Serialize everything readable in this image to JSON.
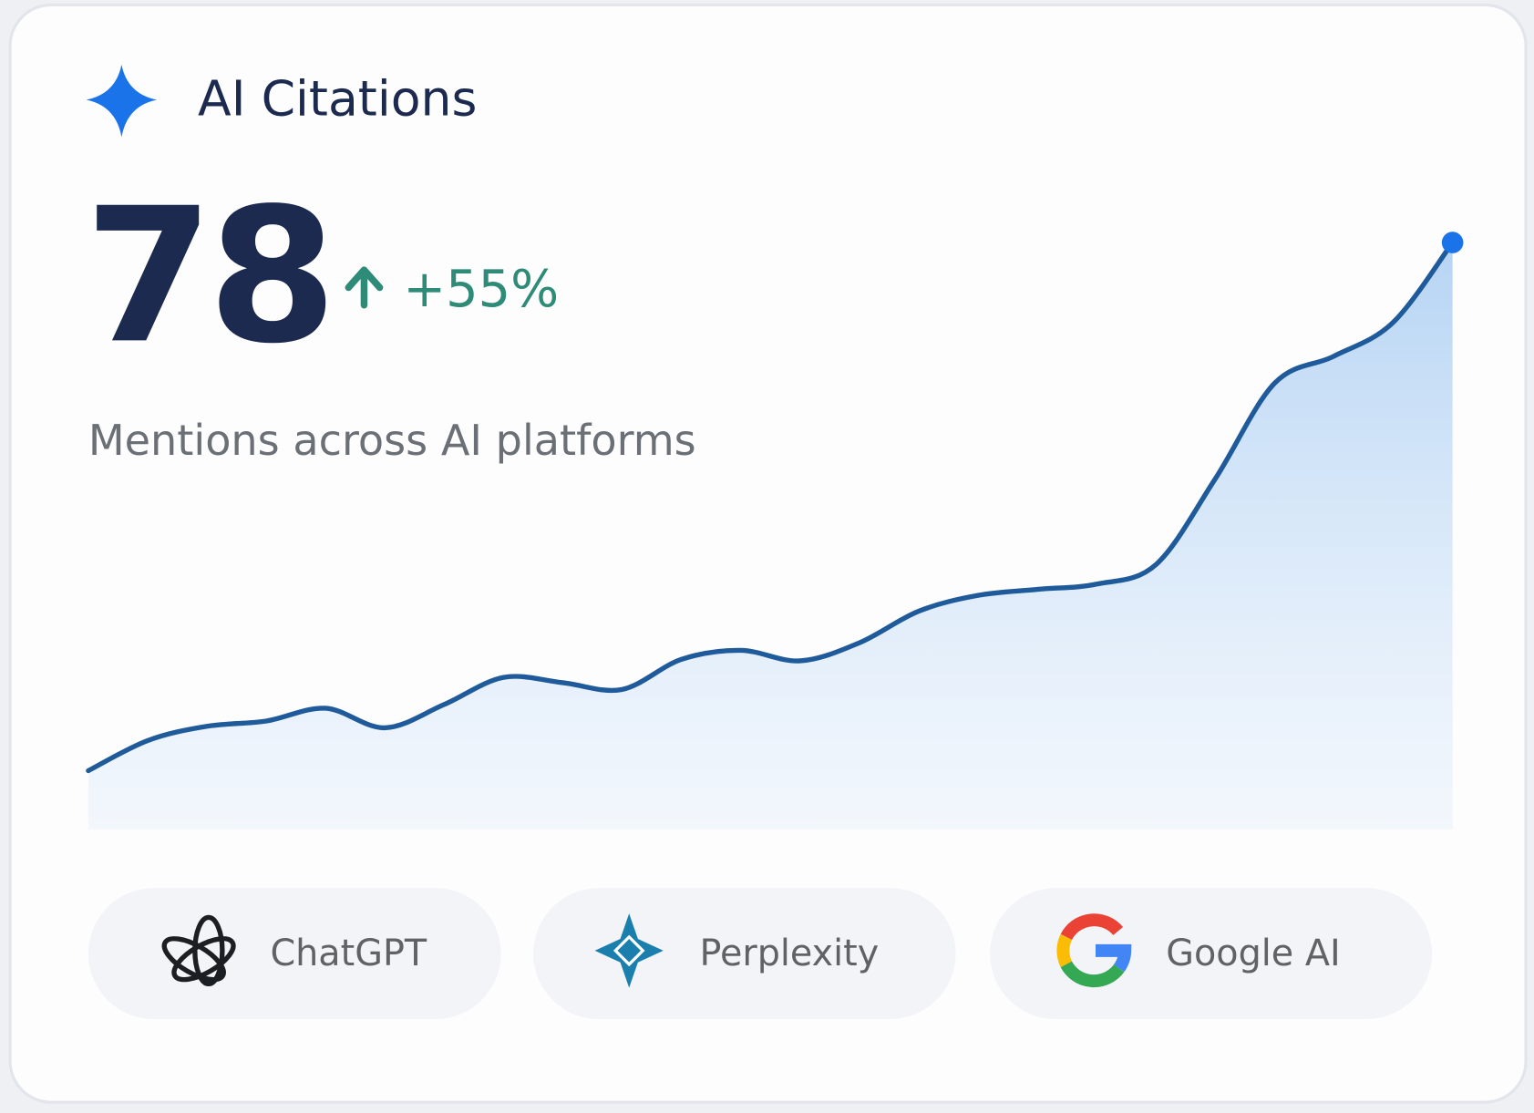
{
  "header": {
    "title": "AI Citations"
  },
  "metric": {
    "value": "78",
    "change": "+55%",
    "caption": "Mentions across AI platforms"
  },
  "chart_data": {
    "type": "line",
    "color": "#1f5a9a",
    "values": [
      7.8,
      11.8,
      13.7,
      14.4,
      16.1,
      13.5,
      16.6,
      20.2,
      19.5,
      18.6,
      22.6,
      23.8,
      22.4,
      24.8,
      29.0,
      31.1,
      31.9,
      32.6,
      35.2,
      46.6,
      59.3,
      62.9,
      67.4,
      78
    ],
    "ylim": [
      0,
      78
    ]
  },
  "platforms": [
    {
      "label": "ChatGPT"
    },
    {
      "label": "Perplexity"
    },
    {
      "label": "Google AI"
    }
  ]
}
